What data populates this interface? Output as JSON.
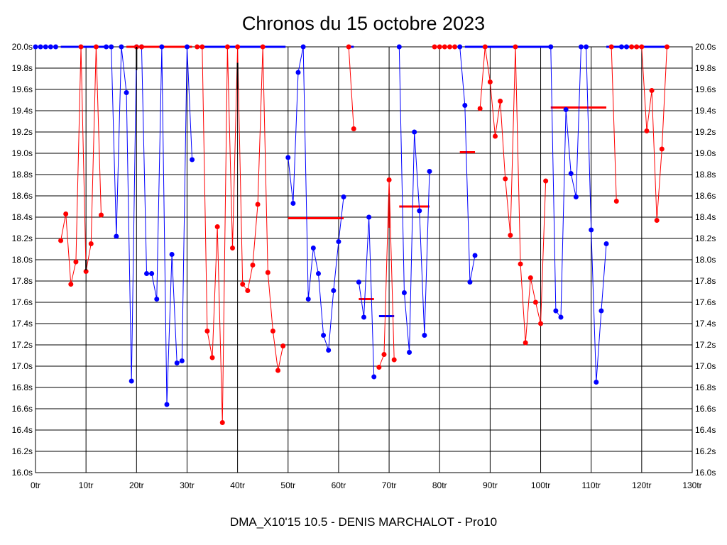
{
  "chart_data": {
    "type": "line",
    "title": "Chronos du 15 octobre 2023",
    "subtitle": "DMA_X10'15 10.5 - DENIS MARCHALOT - Pro10",
    "x_range": [
      0,
      130
    ],
    "y_range": [
      16.0,
      20.0
    ],
    "x_ticks": [
      0,
      10,
      20,
      30,
      40,
      50,
      60,
      70,
      80,
      90,
      100,
      110,
      120,
      130
    ],
    "x_tick_labels": [
      "0tr",
      "10tr",
      "20tr",
      "30tr",
      "40tr",
      "50tr",
      "60tr",
      "70tr",
      "80tr",
      "90tr",
      "100tr",
      "110tr",
      "120tr",
      "130tr"
    ],
    "y_ticks": [
      16.0,
      16.2,
      16.4,
      16.6,
      16.8,
      17.0,
      17.2,
      17.4,
      17.6,
      17.8,
      18.0,
      18.2,
      18.4,
      18.6,
      18.8,
      19.0,
      19.2,
      19.4,
      19.6,
      19.8,
      20.0
    ],
    "y_tick_labels": [
      "16.0s",
      "16.2s",
      "16.4s",
      "16.6s",
      "16.8s",
      "17.0s",
      "17.2s",
      "17.4s",
      "17.6s",
      "17.8s",
      "18.0s",
      "18.2s",
      "18.4s",
      "18.6s",
      "18.8s",
      "19.0s",
      "19.2s",
      "19.4s",
      "19.6s",
      "19.8s",
      "20.0s"
    ],
    "grid": true,
    "series": [
      {
        "color": "#0000ff",
        "segments": [
          [
            [
              0,
              20.0
            ],
            [
              1,
              20.0
            ],
            [
              2,
              20.0
            ],
            [
              3,
              20.0
            ],
            [
              4,
              20.0
            ]
          ],
          [
            [
              14,
              20.0
            ],
            [
              15,
              20.0
            ],
            [
              16,
              18.22
            ],
            [
              17,
              20.0
            ],
            [
              18,
              19.57
            ],
            [
              19,
              16.86
            ],
            [
              20,
              20.0
            ],
            [
              21,
              20.0
            ],
            [
              22,
              17.87
            ],
            [
              23,
              17.87
            ],
            [
              24,
              17.63
            ],
            [
              25,
              20.0
            ],
            [
              26,
              16.64
            ],
            [
              27,
              18.05
            ],
            [
              28,
              17.03
            ],
            [
              29,
              17.05
            ],
            [
              30,
              20.0
            ],
            [
              31,
              18.94
            ]
          ],
          [
            [
              50,
              18.96
            ],
            [
              51,
              18.53
            ],
            [
              52,
              19.76
            ],
            [
              53,
              20.0
            ],
            [
              54,
              17.63
            ],
            [
              55,
              18.11
            ],
            [
              56,
              17.87
            ],
            [
              57,
              17.29
            ],
            [
              58,
              17.15
            ],
            [
              59,
              17.71
            ],
            [
              60,
              18.17
            ],
            [
              61,
              18.59
            ]
          ],
          [
            [
              64,
              17.79
            ],
            [
              65,
              17.46
            ],
            [
              66,
              18.4
            ],
            [
              67,
              16.9
            ]
          ],
          [
            [
              72,
              20.0
            ],
            [
              73,
              17.69
            ],
            [
              74,
              17.13
            ],
            [
              75,
              19.2
            ],
            [
              76,
              18.46
            ],
            [
              77,
              17.29
            ],
            [
              78,
              18.83
            ]
          ],
          [
            [
              84,
              20.0
            ],
            [
              85,
              19.45
            ],
            [
              86,
              17.79
            ],
            [
              87,
              18.04
            ]
          ],
          [
            [
              102,
              20.0
            ],
            [
              103,
              17.52
            ],
            [
              104,
              17.46
            ],
            [
              105,
              19.41
            ],
            [
              106,
              18.81
            ],
            [
              107,
              18.59
            ],
            [
              108,
              20.0
            ],
            [
              109,
              20.0
            ],
            [
              110,
              18.28
            ],
            [
              111,
              16.85
            ],
            [
              112,
              17.52
            ],
            [
              113,
              18.15
            ]
          ],
          [
            [
              116,
              20.0
            ],
            [
              117,
              20.0
            ]
          ]
        ]
      },
      {
        "color": "#ff0000",
        "segments": [
          [
            [
              5,
              18.18
            ],
            [
              6,
              18.43
            ],
            [
              7,
              17.77
            ],
            [
              8,
              17.98
            ],
            [
              9,
              20.0
            ],
            [
              10,
              17.89
            ],
            [
              11,
              18.15
            ],
            [
              12,
              20.0
            ],
            [
              13,
              18.42
            ]
          ],
          [
            [
              20,
              20.0
            ],
            [
              21,
              20.0
            ]
          ],
          [
            [
              32,
              20.0
            ],
            [
              33,
              20.0
            ],
            [
              34,
              17.33
            ],
            [
              35,
              17.08
            ],
            [
              36,
              18.31
            ],
            [
              37,
              16.47
            ],
            [
              38,
              20.0
            ],
            [
              39,
              18.11
            ],
            [
              40,
              20.0
            ],
            [
              41,
              17.77
            ],
            [
              42,
              17.71
            ],
            [
              43,
              17.95
            ],
            [
              44,
              18.52
            ],
            [
              45,
              20.0
            ],
            [
              46,
              17.88
            ],
            [
              47,
              17.33
            ],
            [
              48,
              16.96
            ],
            [
              49,
              17.19
            ]
          ],
          [
            [
              62,
              20.0
            ],
            [
              63,
              19.23
            ]
          ],
          [
            [
              68,
              16.99
            ],
            [
              69,
              17.11
            ],
            [
              70,
              18.75
            ],
            [
              71,
              17.06
            ]
          ],
          [
            [
              79,
              20.0
            ],
            [
              80,
              20.0
            ],
            [
              81,
              20.0
            ],
            [
              82,
              20.0
            ],
            [
              83,
              20.0
            ]
          ],
          [
            [
              88,
              19.42
            ],
            [
              89,
              20.0
            ],
            [
              90,
              19.67
            ],
            [
              91,
              19.16
            ],
            [
              92,
              19.49
            ],
            [
              93,
              18.76
            ],
            [
              94,
              18.23
            ],
            [
              95,
              20.0
            ],
            [
              96,
              17.96
            ],
            [
              97,
              17.22
            ],
            [
              98,
              17.83
            ],
            [
              99,
              17.6
            ],
            [
              100,
              17.4
            ],
            [
              101,
              18.74
            ]
          ],
          [
            [
              114,
              20.0
            ],
            [
              115,
              18.55
            ]
          ],
          [
            [
              118,
              20.0
            ],
            [
              119,
              20.0
            ],
            [
              120,
              20.0
            ],
            [
              121,
              19.21
            ],
            [
              122,
              19.59
            ],
            [
              123,
              18.37
            ],
            [
              124,
              19.04
            ],
            [
              125,
              20.0
            ]
          ]
        ]
      }
    ],
    "flat_lines": [
      {
        "color": "#0000ff",
        "x": [
          5,
          14
        ],
        "y": 20.0
      },
      {
        "color": "#ff0000",
        "x": [
          18,
          31
        ],
        "y": 20.0
      },
      {
        "color": "#0000ff",
        "x": [
          32,
          49.5
        ],
        "y": 20.0
      },
      {
        "color": "#0000ff",
        "x": [
          62,
          63
        ],
        "y": 20.0
      },
      {
        "color": "#0000ff",
        "x": [
          85,
          102
        ],
        "y": 20.0
      },
      {
        "color": "#0000ff",
        "x": [
          113,
          125
        ],
        "y": 20.0
      }
    ],
    "averages": [
      {
        "color": "#ff0000",
        "x": [
          50,
          61
        ],
        "y": 18.39
      },
      {
        "color": "#ff0000",
        "x": [
          64,
          67
        ],
        "y": 17.63
      },
      {
        "color": "#0000ff",
        "x": [
          68,
          71
        ],
        "y": 17.47
      },
      {
        "color": "#ff0000",
        "x": [
          72,
          78
        ],
        "y": 18.5
      },
      {
        "color": "#ff0000",
        "x": [
          84,
          87
        ],
        "y": 19.01
      },
      {
        "color": "#ff0000",
        "x": [
          102,
          113
        ],
        "y": 19.43
      }
    ],
    "vertical_marks": [
      {
        "color": "#000000",
        "x": 10,
        "y": [
          17.9,
          18.0
        ]
      },
      {
        "color": "#000000",
        "x": 20,
        "y": [
          19.78,
          20.0
        ]
      },
      {
        "color": "#000000",
        "x": 40,
        "y": [
          19.6,
          19.85
        ]
      },
      {
        "color": "#cc0000",
        "x": 70,
        "y": [
          18.3,
          18.62
        ]
      }
    ]
  }
}
